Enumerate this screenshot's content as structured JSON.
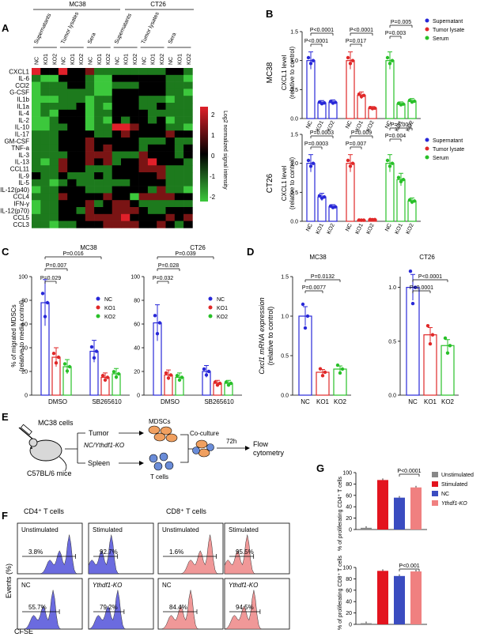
{
  "panels": {
    "A": "A",
    "B": "B",
    "C": "C",
    "D": "D",
    "E": "E",
    "F": "F",
    "G": "G"
  },
  "heatmap": {
    "cell_lines": [
      "MC38",
      "CT26"
    ],
    "sample_groups": [
      "Supernatants",
      "Tumor lysates",
      "Sera",
      "Supernatants",
      "Tumor lysates",
      "Sera"
    ],
    "column_labels": [
      "NC",
      "KO1",
      "KO2",
      "NC",
      "KO1",
      "KO2",
      "NC",
      "KO1",
      "KO2",
      "NC",
      "KO1",
      "KO2",
      "NC",
      "KO1",
      "KO2",
      "NC",
      "KO1",
      "KO2"
    ],
    "rows": [
      "CXCL1",
      "IL-6",
      "CCl2",
      "G-CSF",
      "IL1b",
      "IL1a",
      "IL-4",
      "IL-2",
      "IL-10",
      "IL-17",
      "GM-CSF",
      "TNF-a",
      "IL-3",
      "IL-13",
      "CCL11",
      "IL-9",
      "IL-5",
      "IL-12(p40)",
      "CCL4",
      "IFN-γ",
      "IL-12(p70)",
      "CCL5",
      "CCL3"
    ],
    "colorbar_ticks": [
      "2",
      "1",
      "0",
      "-1",
      "-2"
    ],
    "colorbar_label": "Log2 normalized signal intensity",
    "colors": {
      "high": "#e0202a",
      "mid": "#000000",
      "low": "#3cc83c"
    }
  },
  "panelB": {
    "ylabel": "CXCL1 level",
    "ylabel2": "(relative to control)",
    "legend": [
      "Supernatant",
      "Tumor lysate",
      "Serum"
    ],
    "legend_colors": [
      "#2828d8",
      "#e02828",
      "#28c028"
    ],
    "xcats": [
      "NC",
      "KO1",
      "KO2",
      "NC",
      "KO1",
      "KO2",
      "NC",
      "KO1",
      "KO2"
    ],
    "ticks": [
      "0.0",
      "0.5",
      "1.0",
      "1.5"
    ],
    "mc38": {
      "label": "MC38",
      "pvals": [
        "P<0.0001",
        "P<0.0001",
        "P<0.0001",
        "P=0.017",
        "P=0.005",
        "P=0.003"
      ]
    },
    "ct26": {
      "label": "CT26",
      "pvals": [
        "P=0.0003",
        "P=0.0003",
        "P=0.009",
        "P=0.007",
        "P=0.003",
        "P=0.004"
      ]
    }
  },
  "panelC": {
    "ylabel": "% of migrated MDSCs",
    "ylabel2": "(relative to media control)",
    "ticks": [
      "0",
      "20",
      "40",
      "60",
      "80",
      "100"
    ],
    "legend": [
      "NC",
      "KO1",
      "KO2"
    ],
    "xcats": [
      "DMSO",
      "SB265610"
    ],
    "mc38": {
      "title": "MC38",
      "pvals": [
        "P=0.016",
        "P=0.007",
        "P=0.029"
      ]
    },
    "ct26": {
      "title": "CT26",
      "pvals": [
        "P=0.039",
        "P=0.028",
        "P=0.032"
      ]
    }
  },
  "panelD": {
    "ylabel": "Cxcl1 mRNA expression",
    "ylabel2": "(relative to control)",
    "xcats": [
      "NC",
      "KO1",
      "KO2"
    ],
    "mc38": {
      "title": "MC38",
      "ticks": [
        "0.0",
        "0.5",
        "1.0",
        "1.5"
      ],
      "pvals": [
        "P=0.0132",
        "P=0.0077"
      ]
    },
    "ct26": {
      "title": "CT26",
      "ticks": [
        "0.0",
        "0.5",
        "1.0"
      ],
      "pvals": [
        "P<0.0001",
        "P<0.0001"
      ]
    }
  },
  "panelE": {
    "mc38_cells": "MC38 cells",
    "mice": "C57BL/6 mice",
    "tumor": "Tumor",
    "nc_ko": "NC/Ythdf1-KO",
    "spleen": "Spleen",
    "mdscs": "MDSCs",
    "tcells": "T cells",
    "coculture": "Co-culture",
    "time": "72h",
    "flow1": "Flow",
    "flow2": "cytometry"
  },
  "panelF": {
    "cd4": "CD4⁺ T cells",
    "cd8": "CD8⁺ T cells",
    "ylabel": "Events (%)",
    "xlabel": "CFSE",
    "cd4_hist": [
      {
        "label": "Unstimulated",
        "pct": "3.8%"
      },
      {
        "label": "Stimulated",
        "pct": "92.7%"
      },
      {
        "label": "NC",
        "pct": "55.7%"
      },
      {
        "label": "Ythdf1-KO",
        "pct": "79.2%"
      }
    ],
    "cd8_hist": [
      {
        "label": "Unstimulated",
        "pct": "1.6%"
      },
      {
        "label": "Stimulated",
        "pct": "95.5%"
      },
      {
        "label": "NC",
        "pct": "84.4%"
      },
      {
        "label": "Ythdf1-KO",
        "pct": "94.5%"
      }
    ]
  },
  "panelG": {
    "legend": [
      "Unstimulated",
      "Stimulated",
      "NC",
      "Ythdf1-KO"
    ],
    "legend_colors": [
      "#888888",
      "#e3141e",
      "#3a4cc0",
      "#f08080"
    ],
    "ticks": [
      "0",
      "20",
      "40",
      "60",
      "80",
      "100"
    ],
    "cd4": {
      "ylabel": "% of proliferating CD4⁺ T cells",
      "pval": "P<0.0001"
    },
    "cd8": {
      "ylabel": "% of proliferating CD8⁺ T cells",
      "pval": "P<0.001"
    }
  },
  "chart_data": [
    {
      "type": "bar",
      "title": "",
      "ylabel": "CXCL1 level (relative to control)",
      "categories": [
        "NC",
        "KO1",
        "KO2"
      ],
      "series": [
        {
          "name": "Supernatant",
          "values": [
            1.0,
            0.27,
            0.28
          ]
        },
        {
          "name": "Tumor lysate",
          "values": [
            1.0,
            0.4,
            0.18
          ]
        },
        {
          "name": "Serum",
          "values": [
            1.0,
            0.25,
            0.3
          ]
        }
      ],
      "ylim": [
        0,
        1.5
      ]
    },
    {
      "type": "bar",
      "title": "",
      "ylabel": "CXCL1 level (relative to control)",
      "categories": [
        "NC",
        "KO1",
        "KO2"
      ],
      "series": [
        {
          "name": "Supernatant",
          "values": [
            1.0,
            0.42,
            0.25
          ]
        },
        {
          "name": "Tumor lysate",
          "values": [
            1.0,
            0.02,
            0.03
          ]
        },
        {
          "name": "Serum",
          "values": [
            1.0,
            0.72,
            0.35
          ]
        }
      ],
      "ylim": [
        0,
        1.5
      ]
    },
    {
      "type": "bar",
      "title": "MC38",
      "ylabel": "% of migrated MDSCs (relative to media control)",
      "categories": [
        "DMSO",
        "SB265610"
      ],
      "series": [
        {
          "name": "NC",
          "values": [
            78,
            37
          ]
        },
        {
          "name": "KO1",
          "values": [
            32,
            15
          ]
        },
        {
          "name": "KO2",
          "values": [
            24,
            18
          ]
        }
      ],
      "ylim": [
        0,
        100
      ]
    },
    {
      "type": "bar",
      "title": "CT26",
      "ylabel": "% of migrated MDSCs (relative to media control)",
      "categories": [
        "DMSO",
        "SB265610"
      ],
      "series": [
        {
          "name": "NC",
          "values": [
            61,
            20
          ]
        },
        {
          "name": "KO1",
          "values": [
            17,
            10
          ]
        },
        {
          "name": "KO2",
          "values": [
            15,
            10
          ]
        }
      ],
      "ylim": [
        0,
        100
      ]
    },
    {
      "type": "bar",
      "title": "MC38",
      "ylabel": "Cxcl1 mRNA expression (relative to control)",
      "categories": [
        "NC",
        "KO1",
        "KO2"
      ],
      "values": [
        1.0,
        0.29,
        0.33
      ],
      "ylim": [
        0,
        1.5
      ]
    },
    {
      "type": "bar",
      "title": "CT26",
      "ylabel": "Cxcl1 mRNA expression (relative to control)",
      "categories": [
        "NC",
        "KO1",
        "KO2"
      ],
      "values": [
        1.0,
        0.56,
        0.46
      ],
      "ylim": [
        0,
        1.1
      ]
    },
    {
      "type": "bar",
      "title": "",
      "ylabel": "% of proliferating CD4⁺ T cells",
      "categories": [
        "Unstimulated",
        "Stimulated",
        "NC",
        "Ythdf1-KO"
      ],
      "values": [
        3,
        87,
        56,
        74
      ],
      "ylim": [
        0,
        100
      ]
    },
    {
      "type": "bar",
      "title": "",
      "ylabel": "% of proliferating CD8⁺ T cells",
      "categories": [
        "Unstimulated",
        "Stimulated",
        "NC",
        "Ythdf1-KO"
      ],
      "values": [
        2,
        94,
        85,
        93
      ],
      "ylim": [
        0,
        100
      ]
    }
  ]
}
